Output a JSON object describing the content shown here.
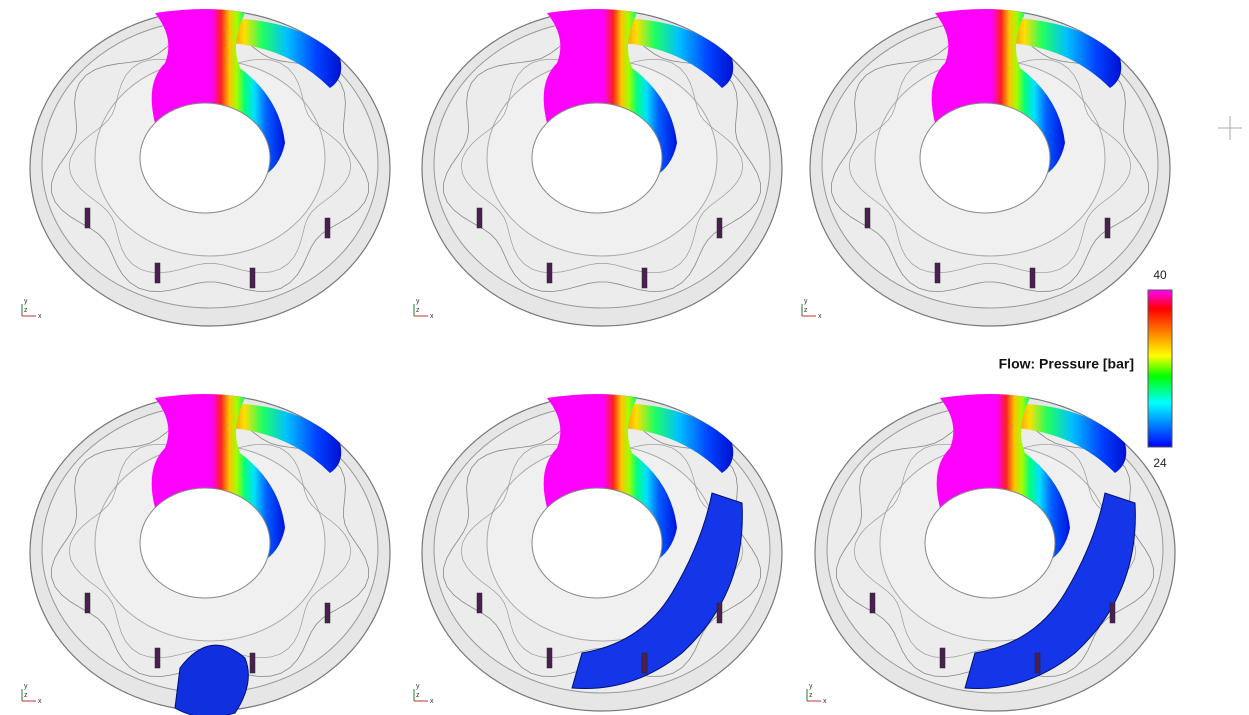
{
  "colorbar": {
    "label": "Flow: Pressure [bar]",
    "max": 40,
    "min": 24
  },
  "triad": {
    "y": "y",
    "z": "z",
    "x": "x"
  }
}
